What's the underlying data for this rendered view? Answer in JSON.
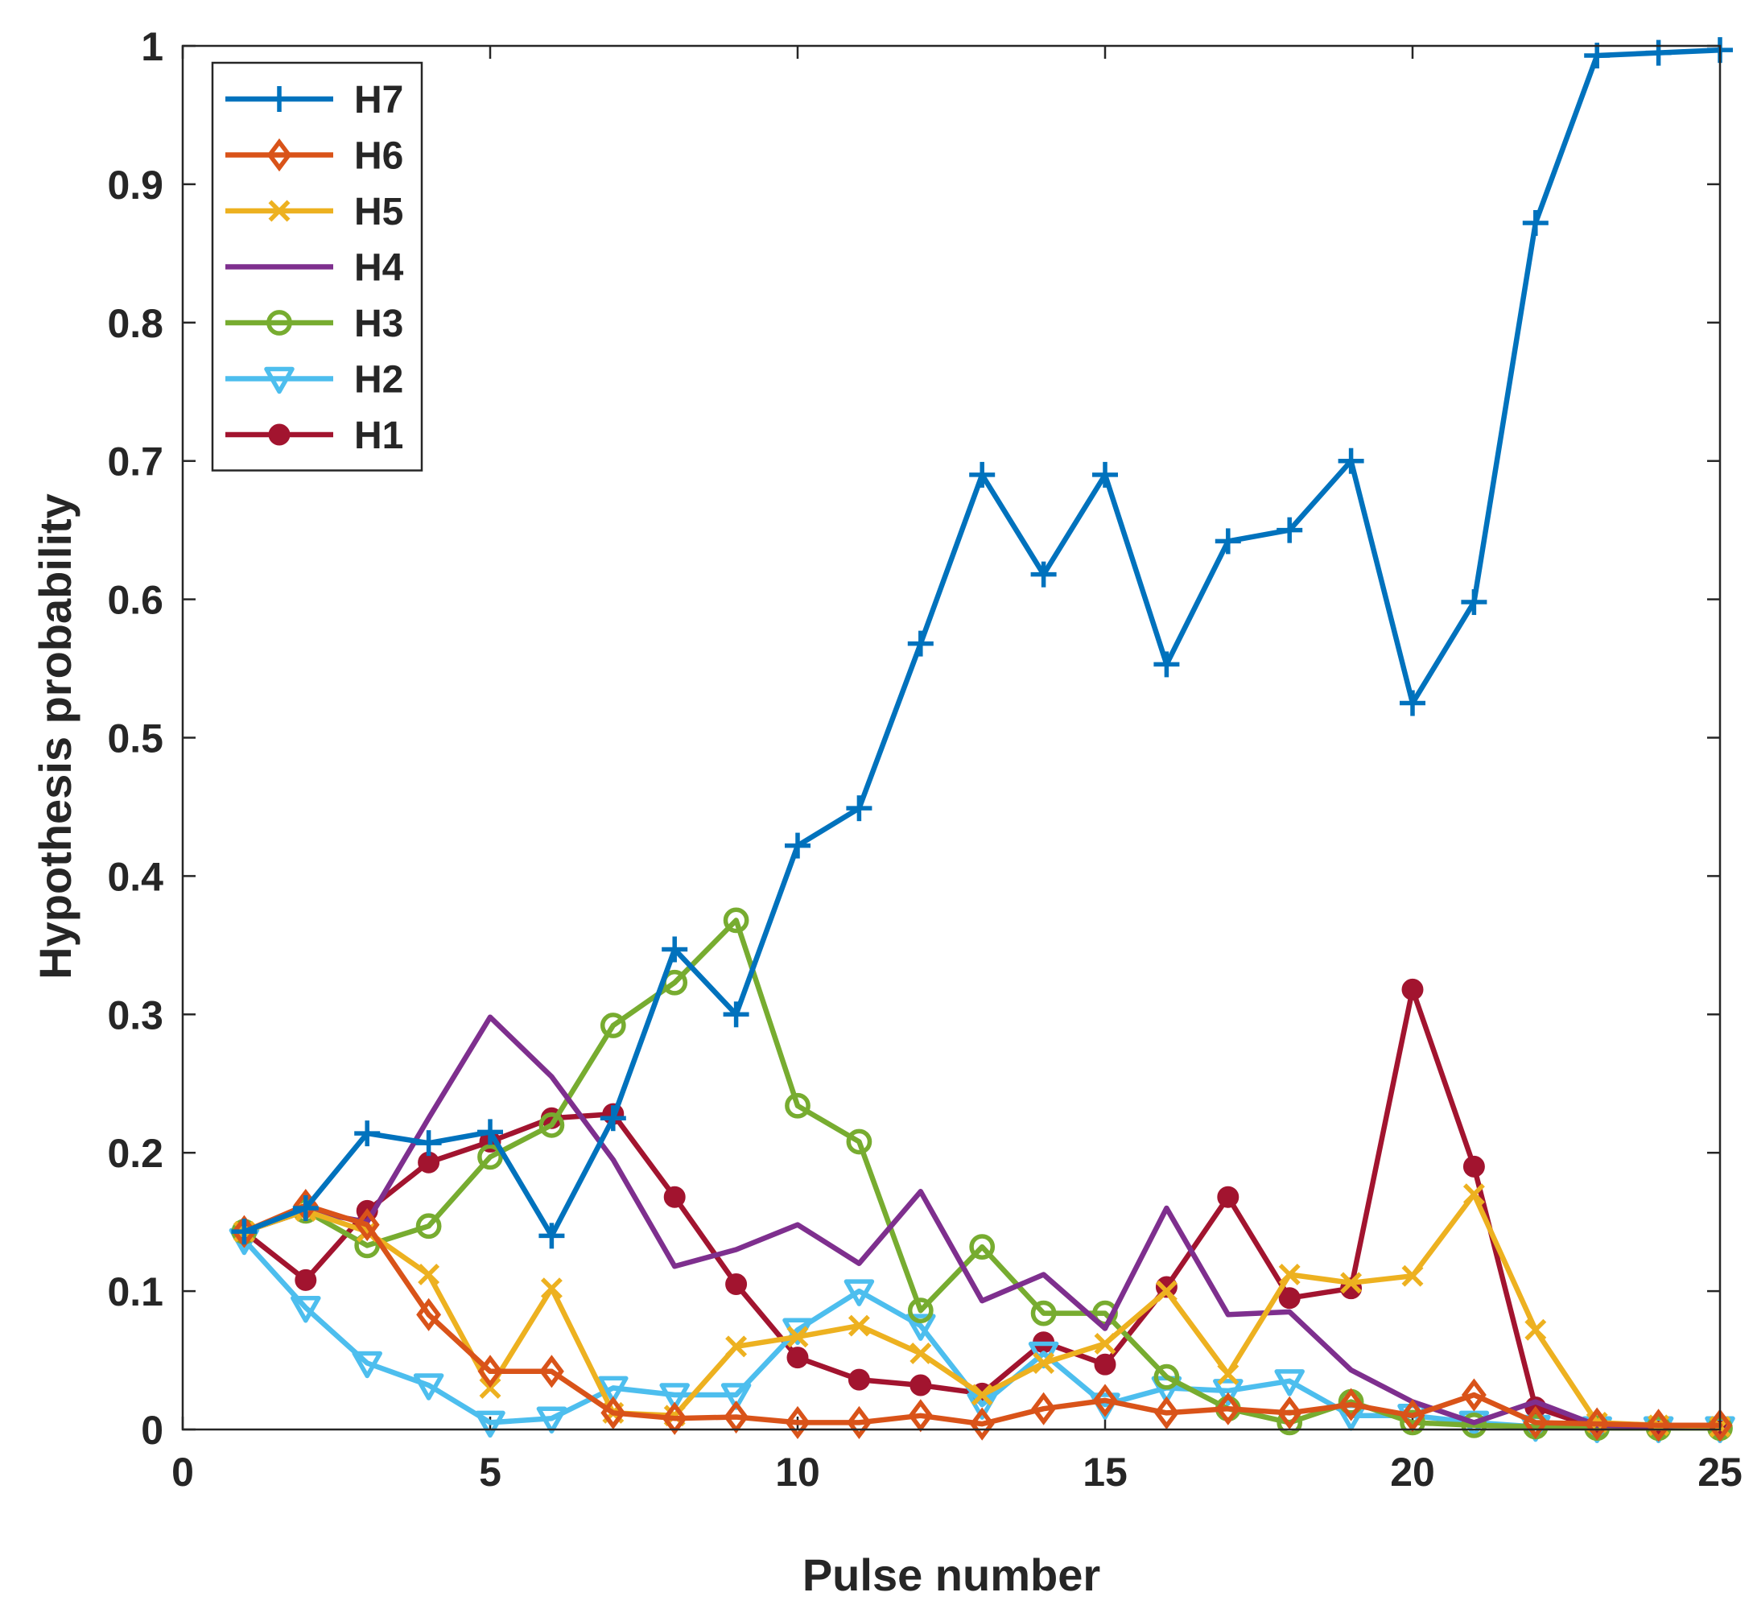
{
  "chart_data": {
    "type": "line",
    "title": "",
    "xlabel": "Pulse number",
    "ylabel": "Hypothesis probability",
    "xlim": [
      0,
      25
    ],
    "ylim": [
      0,
      1
    ],
    "xticks": [
      0,
      5,
      10,
      15,
      20,
      25
    ],
    "yticks": [
      0,
      0.1,
      0.2,
      0.3,
      0.4,
      0.5,
      0.6,
      0.7,
      0.8,
      0.9,
      1
    ],
    "xtick_labels": [
      "0",
      "5",
      "10",
      "15",
      "20",
      "25"
    ],
    "ytick_labels": [
      "0",
      "0.1",
      "0.2",
      "0.3",
      "0.4",
      "0.5",
      "0.6",
      "0.7",
      "0.8",
      "0.9",
      "1"
    ],
    "grid": false,
    "legend_position": "top-left",
    "x": [
      1,
      2,
      3,
      4,
      5,
      6,
      7,
      8,
      9,
      10,
      11,
      12,
      13,
      14,
      15,
      16,
      17,
      18,
      19,
      20,
      21,
      22,
      23,
      24,
      25
    ],
    "series": [
      {
        "name": "H7",
        "color": "#0072BD",
        "marker": "plus",
        "values": [
          0.143,
          0.16,
          0.214,
          0.207,
          0.215,
          0.14,
          0.225,
          0.347,
          0.3,
          0.422,
          0.449,
          0.568,
          0.69,
          0.618,
          0.69,
          0.553,
          0.642,
          0.65,
          0.7,
          0.525,
          0.598,
          0.872,
          0.993,
          0.995,
          0.997
        ]
      },
      {
        "name": "H6",
        "color": "#D95319",
        "marker": "diamond",
        "values": [
          0.143,
          0.162,
          0.148,
          0.083,
          0.042,
          0.042,
          0.012,
          0.008,
          0.009,
          0.005,
          0.005,
          0.01,
          0.004,
          0.015,
          0.021,
          0.012,
          0.015,
          0.012,
          0.018,
          0.01,
          0.025,
          0.005,
          0.004,
          0.003,
          0.003
        ]
      },
      {
        "name": "H5",
        "color": "#EDB120",
        "marker": "x",
        "values": [
          0.143,
          0.158,
          0.143,
          0.112,
          0.03,
          0.102,
          0.012,
          0.01,
          0.06,
          0.067,
          0.075,
          0.055,
          0.025,
          0.048,
          0.062,
          0.1,
          0.04,
          0.112,
          0.106,
          0.111,
          0.17,
          0.072,
          0.005,
          0.003,
          0.002
        ]
      },
      {
        "name": "H4",
        "color": "#7E2F8E",
        "marker": "none",
        "values": [
          0.143,
          0.158,
          0.15,
          0.225,
          0.298,
          0.255,
          0.195,
          0.118,
          0.13,
          0.148,
          0.12,
          0.172,
          0.093,
          0.112,
          0.073,
          0.16,
          0.083,
          0.085,
          0.043,
          0.02,
          0.005,
          0.02,
          0.003,
          0.002,
          0.002
        ]
      },
      {
        "name": "H3",
        "color": "#77AC30",
        "marker": "circle",
        "values": [
          0.143,
          0.158,
          0.133,
          0.147,
          0.197,
          0.22,
          0.292,
          0.323,
          0.368,
          0.234,
          0.208,
          0.086,
          0.132,
          0.084,
          0.084,
          0.038,
          0.015,
          0.005,
          0.02,
          0.005,
          0.003,
          0.002,
          0.001,
          0.001,
          0.001
        ]
      },
      {
        "name": "H2",
        "color": "#4DBEEE",
        "marker": "triangle-down",
        "values": [
          0.137,
          0.088,
          0.048,
          0.032,
          0.005,
          0.008,
          0.03,
          0.025,
          0.025,
          0.072,
          0.1,
          0.075,
          0.018,
          0.055,
          0.018,
          0.03,
          0.028,
          0.035,
          0.01,
          0.01,
          0.005,
          0.002,
          0.001,
          0.001,
          0.001
        ]
      },
      {
        "name": "H1",
        "color": "#A2142F",
        "marker": "dot",
        "values": [
          0.143,
          0.108,
          0.158,
          0.193,
          0.208,
          0.225,
          0.228,
          0.168,
          0.105,
          0.052,
          0.036,
          0.032,
          0.026,
          0.063,
          0.047,
          0.103,
          0.168,
          0.095,
          0.102,
          0.318,
          0.19,
          0.016,
          0.001,
          0.001,
          0.001
        ]
      }
    ]
  }
}
